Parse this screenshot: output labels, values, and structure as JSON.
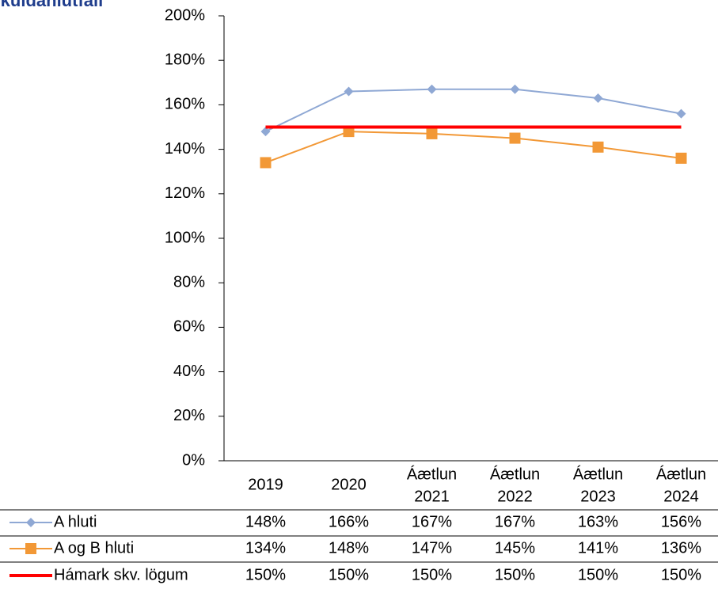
{
  "chart_data": {
    "type": "line",
    "title": "Skuldahlutfall",
    "categories": [
      [
        "2019"
      ],
      [
        "2020"
      ],
      [
        "Áætlun",
        "2021"
      ],
      [
        "Áætlun",
        "2022"
      ],
      [
        "Áætlun",
        "2023"
      ],
      [
        "Áætlun",
        "2024"
      ]
    ],
    "series": [
      {
        "name": "A hluti",
        "color": "#8fa8d4",
        "marker": "diamond",
        "values": [
          148,
          166,
          167,
          167,
          163,
          156
        ],
        "value_labels": [
          "148%",
          "166%",
          "167%",
          "167%",
          "163%",
          "156%"
        ]
      },
      {
        "name": "A og B hluti",
        "color": "#f29836",
        "marker": "square",
        "values": [
          134,
          148,
          147,
          145,
          141,
          136
        ],
        "value_labels": [
          "134%",
          "148%",
          "147%",
          "145%",
          "141%",
          "136%"
        ]
      },
      {
        "name": "Hámark skv. lögum",
        "color": "#ff0000",
        "marker": "none",
        "values": [
          150,
          150,
          150,
          150,
          150,
          150
        ],
        "value_labels": [
          "150%",
          "150%",
          "150%",
          "150%",
          "150%",
          "150%"
        ]
      }
    ],
    "ylim": [
      0,
      200
    ],
    "yticks": [
      {
        "value": 0,
        "label": "0%"
      },
      {
        "value": 20,
        "label": "20%"
      },
      {
        "value": 40,
        "label": "40%"
      },
      {
        "value": 60,
        "label": "60%"
      },
      {
        "value": 80,
        "label": "80%"
      },
      {
        "value": 100,
        "label": "100%"
      },
      {
        "value": 120,
        "label": "120%"
      },
      {
        "value": 140,
        "label": "140%"
      },
      {
        "value": 160,
        "label": "160%"
      },
      {
        "value": 180,
        "label": "180%"
      },
      {
        "value": 200,
        "label": "200%"
      }
    ]
  }
}
